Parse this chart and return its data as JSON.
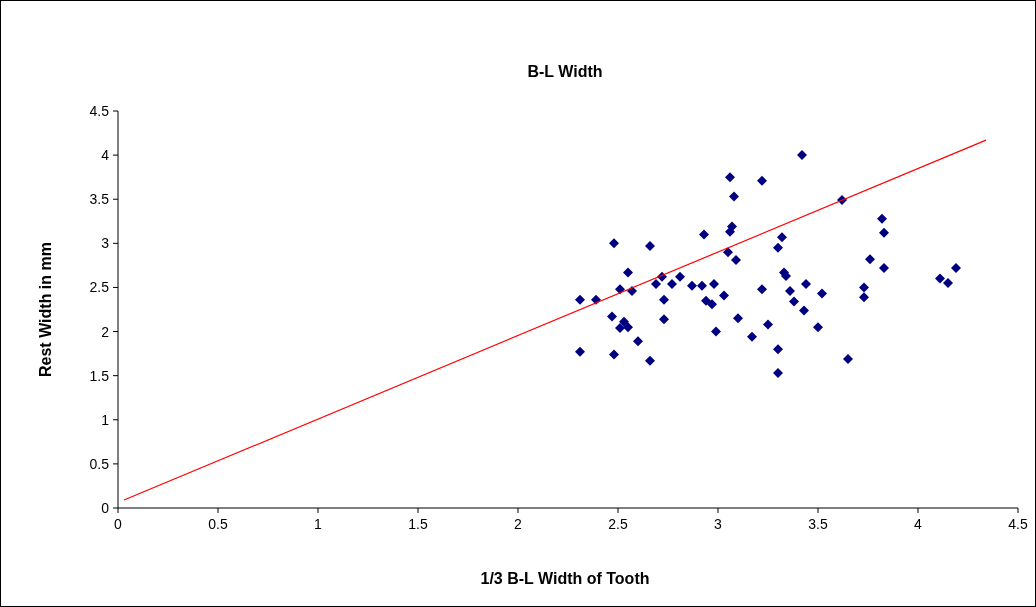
{
  "chart_data": {
    "type": "scatter",
    "title": "B-L Width",
    "xlabel": "1/3 B-L Width of Tooth",
    "ylabel": "Rest Width in mm",
    "xlim": [
      0,
      4.5
    ],
    "ylim": [
      0,
      4.5
    ],
    "xticks": [
      0,
      0.5,
      1,
      1.5,
      2,
      2.5,
      3,
      3.5,
      4,
      4.5
    ],
    "yticks": [
      0,
      0.5,
      1,
      1.5,
      2,
      2.5,
      3,
      3.5,
      4,
      4.5
    ],
    "grid": false,
    "series": [
      {
        "marker": "diamond",
        "color": "#000080",
        "x": [
          2.31,
          2.31,
          2.39,
          2.47,
          2.48,
          2.48,
          2.51,
          2.51,
          2.53,
          2.55,
          2.55,
          2.57,
          2.6,
          2.66,
          2.66,
          2.69,
          2.72,
          2.73,
          2.73,
          2.77,
          2.81,
          2.87,
          2.92,
          2.93,
          2.94,
          2.97,
          2.98,
          2.99,
          3.03,
          3.05,
          3.06,
          3.06,
          3.07,
          3.08,
          3.09,
          3.1,
          3.17,
          3.22,
          3.22,
          3.25,
          3.3,
          3.3,
          3.3,
          3.32,
          3.33,
          3.34,
          3.36,
          3.38,
          3.42,
          3.43,
          3.44,
          3.5,
          3.52,
          3.62,
          3.65,
          3.73,
          3.73,
          3.76,
          3.82,
          3.83,
          3.83,
          4.11,
          4.15,
          4.19
        ],
        "values": [
          2.36,
          1.77,
          2.36,
          2.17,
          3.0,
          1.74,
          2.48,
          2.04,
          2.11,
          2.67,
          2.05,
          2.46,
          1.89,
          2.97,
          1.67,
          2.54,
          2.62,
          2.36,
          2.14,
          2.54,
          2.62,
          2.52,
          2.52,
          3.1,
          2.35,
          2.31,
          2.54,
          2.0,
          2.41,
          2.9,
          3.75,
          3.13,
          3.19,
          3.53,
          2.81,
          2.15,
          1.94,
          3.71,
          2.48,
          2.08,
          2.95,
          1.8,
          1.53,
          3.07,
          2.67,
          2.63,
          2.46,
          2.34,
          4.0,
          2.24,
          2.54,
          2.05,
          2.43,
          3.49,
          1.69,
          2.5,
          2.39,
          2.82,
          3.28,
          3.12,
          2.72,
          2.6,
          2.55,
          2.72
        ]
      },
      {
        "type": "line",
        "marker": "none",
        "color": "#ff0000",
        "x": [
          0.03,
          4.34
        ],
        "values": [
          0.09,
          4.17
        ]
      }
    ]
  }
}
